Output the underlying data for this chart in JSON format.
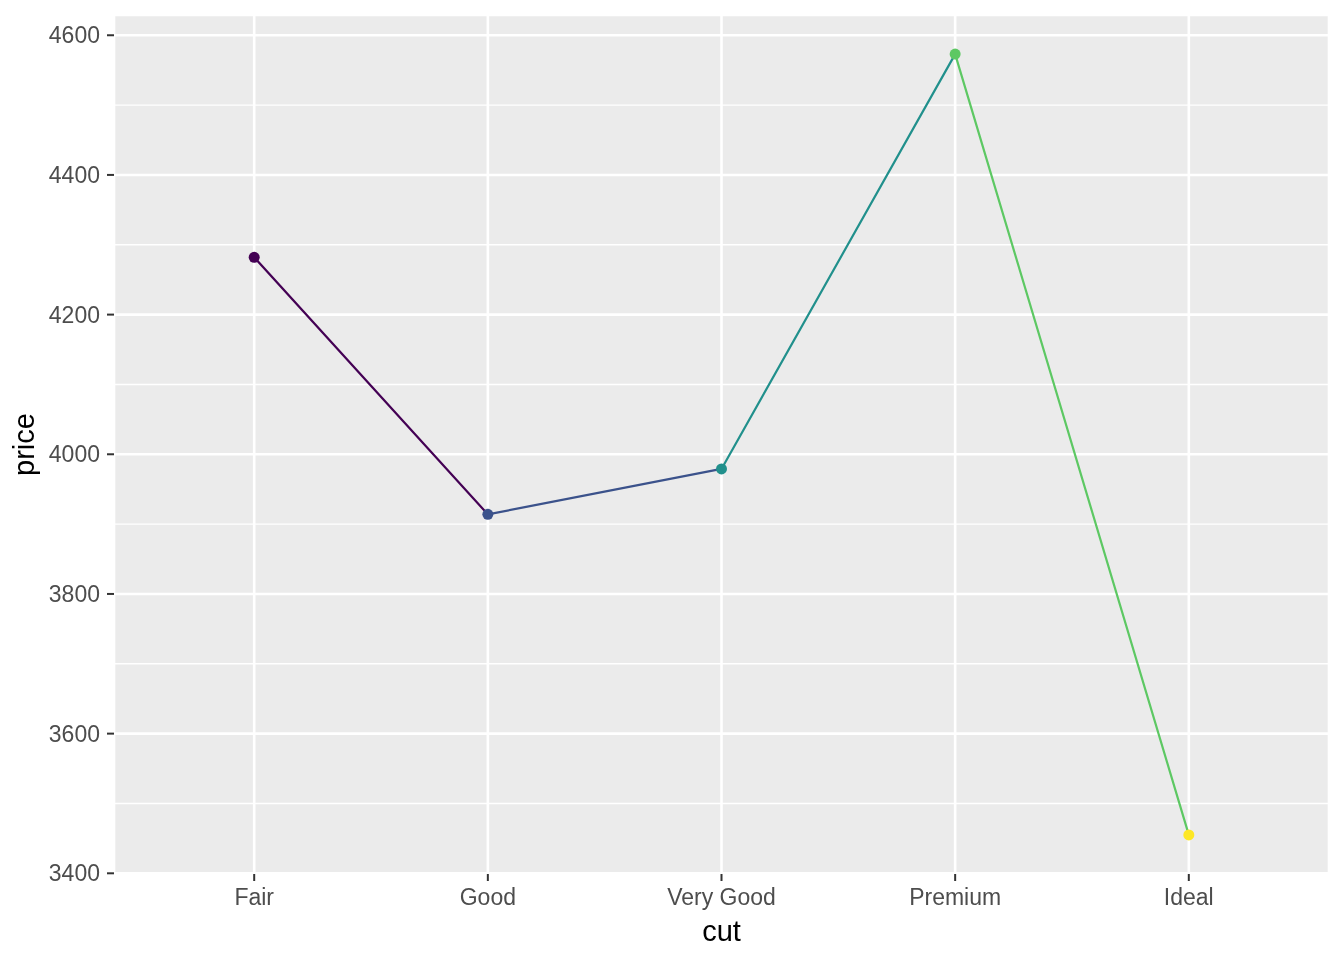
{
  "chart_data": {
    "type": "line",
    "xlabel": "cut",
    "ylabel": "price",
    "categories": [
      "Fair",
      "Good",
      "Very Good",
      "Premium",
      "Ideal"
    ],
    "values": [
      4282,
      3914,
      3979,
      4573,
      3455
    ],
    "colors": [
      "#440154",
      "#3b528b",
      "#21908c",
      "#5dc863",
      "#fde725"
    ],
    "ylim": [
      3399,
      4629
    ],
    "yticks": [
      3400,
      3600,
      3800,
      4000,
      4200,
      4400,
      4600
    ],
    "grid": true,
    "marker": "circle"
  }
}
